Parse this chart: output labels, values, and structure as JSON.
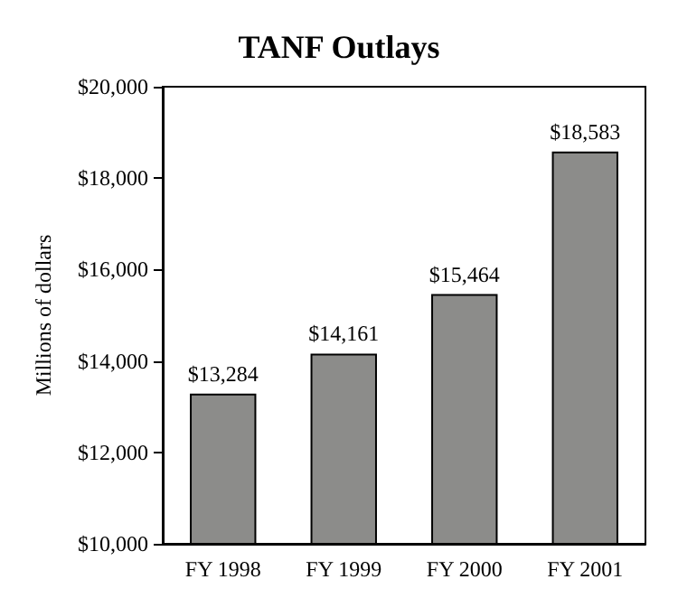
{
  "chart_data": {
    "type": "bar",
    "title": "TANF Outlays",
    "ylabel": "Millions of dollars",
    "categories": [
      "FY 1998",
      "FY 1999",
      "FY 2000",
      "FY 2001"
    ],
    "values": [
      13284,
      14161,
      15464,
      18583
    ],
    "value_labels": [
      "$13,284",
      "$14,161",
      "$15,464",
      "$18,583"
    ],
    "color": "#8c8c8a",
    "ylim": [
      10000,
      20000
    ],
    "yticks": [
      {
        "value": 10000,
        "label": "$10,000"
      },
      {
        "value": 12000,
        "label": "$12,000"
      },
      {
        "value": 14000,
        "label": "$14,000"
      },
      {
        "value": 16000,
        "label": "$16,000"
      },
      {
        "value": 18000,
        "label": "$18,000"
      },
      {
        "value": 20000,
        "label": "$20,000"
      }
    ],
    "grid": false
  }
}
